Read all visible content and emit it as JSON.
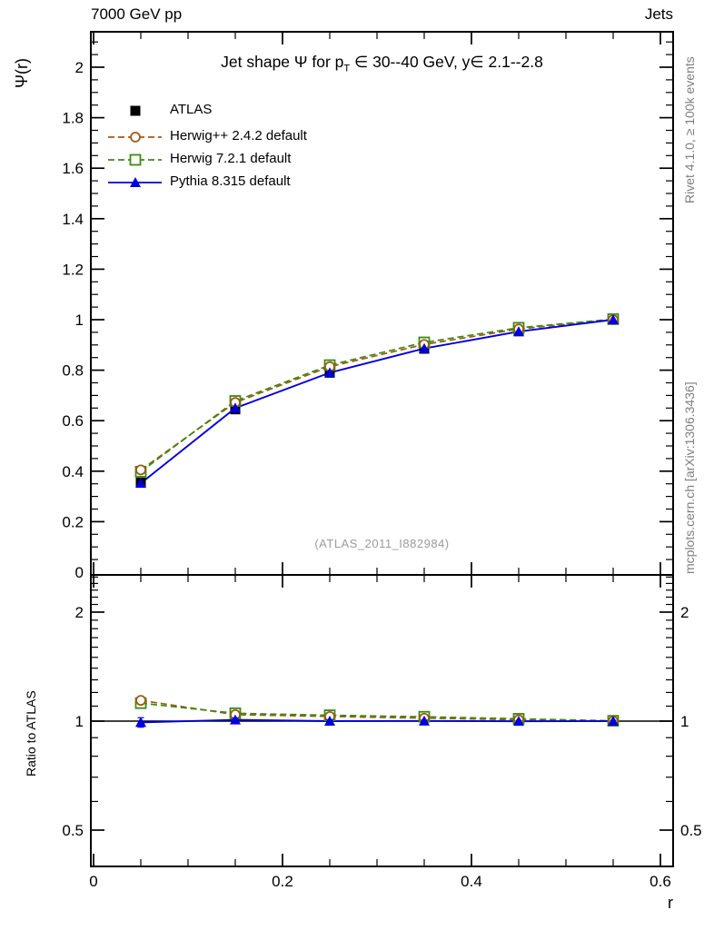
{
  "header": {
    "left_label": "7000 GeV pp",
    "right_label": "Jets"
  },
  "title": {
    "pre": "Jet shape Ψ for p",
    "sub": "T",
    "post": " ∈ 30--40 GeV, y∈ 2.1--2.8"
  },
  "watermark": "(ATLAS_2011_I882984)",
  "side_notes": {
    "top_rotated": "Rivet 4.1.0, ≥ 100k events",
    "bottom_rotated": "mcplots.cern.ch [arXiv:1306.3436]"
  },
  "axes": {
    "x_label": "r",
    "main_y_label": "Ψ(r)",
    "ratio_y_label": "Ratio to ATLAS",
    "x_ticks": [
      {
        "v": 0,
        "label": "0"
      },
      {
        "v": 0.2,
        "label": "0.2"
      },
      {
        "v": 0.4,
        "label": "0.4"
      },
      {
        "v": 0.6,
        "label": "0.6"
      }
    ],
    "main_y_ticks": [
      {
        "v": 0,
        "label": "0"
      },
      {
        "v": 0.2,
        "label": "0.2"
      },
      {
        "v": 0.4,
        "label": "0.4"
      },
      {
        "v": 0.6,
        "label": "0.6"
      },
      {
        "v": 0.8,
        "label": "0.8"
      },
      {
        "v": 1,
        "label": "1"
      },
      {
        "v": 1.2,
        "label": "1.2"
      },
      {
        "v": 1.4,
        "label": "1.4"
      },
      {
        "v": 1.6,
        "label": "1.6"
      },
      {
        "v": 1.8,
        "label": "1.8"
      },
      {
        "v": 2,
        "label": "2"
      }
    ],
    "ratio_y_ticks": [
      {
        "v": 0.5,
        "label": "0.5"
      },
      {
        "v": 1,
        "label": "1"
      },
      {
        "v": 2,
        "label": "2"
      }
    ]
  },
  "legend": {
    "items": [
      {
        "label": "ATLAS"
      },
      {
        "label": "Herwig++ 2.4.2 default"
      },
      {
        "label": "Herwig 7.2.1 default"
      },
      {
        "label": "Pythia 8.315 default"
      }
    ]
  },
  "colors": {
    "atlas": "#000000",
    "herwigpp": "#a05a12",
    "herwig7": "#3a8c12",
    "pythia": "#0000dd",
    "gray_text": "#7e7e7e"
  },
  "chart_data": [
    {
      "type": "line",
      "panel": "main",
      "title": "Jet shape Ψ for pT ∈ 30--40 GeV, y∈ 2.1--2.8",
      "xlabel": "r",
      "ylabel": "Ψ(r)",
      "xlim": [
        0,
        0.613
      ],
      "ylim": [
        0,
        2.14
      ],
      "x": [
        0.05,
        0.15,
        0.25,
        0.35,
        0.45,
        0.55
      ],
      "series": [
        {
          "name": "ATLAS",
          "color": "#000000",
          "marker": "filled-square",
          "line": "none",
          "values": [
            0.355,
            0.645,
            0.79,
            0.885,
            0.954,
            1.0
          ],
          "yerr": [
            0.008,
            0.006,
            0.005,
            0.004,
            0.003,
            0.002
          ]
        },
        {
          "name": "Herwig++ 2.4.2 default",
          "color": "#a05a12",
          "marker": "open-circle",
          "line": "dashed",
          "values": [
            0.405,
            0.672,
            0.814,
            0.902,
            0.963,
            1.0
          ]
        },
        {
          "name": "Herwig 7.2.1 default",
          "color": "#3a8c12",
          "marker": "open-square",
          "line": "dashed",
          "values": [
            0.398,
            0.678,
            0.82,
            0.91,
            0.968,
            1.002
          ]
        },
        {
          "name": "Pythia 8.315 default",
          "color": "#0000dd",
          "marker": "filled-triangle",
          "line": "solid",
          "values": [
            0.352,
            0.65,
            0.79,
            0.886,
            0.953,
            1.0
          ]
        }
      ],
      "grid": false,
      "legend_position": "upper-left"
    },
    {
      "type": "line",
      "panel": "ratio",
      "ylabel": "Ratio to ATLAS",
      "yscale": "log",
      "xlim": [
        0,
        0.613
      ],
      "ylim": [
        0.4,
        2.53
      ],
      "x": [
        0.05,
        0.15,
        0.25,
        0.35,
        0.45,
        0.55
      ],
      "reference_line": 1,
      "series": [
        {
          "name": "Herwig++ 2.4.2 default",
          "color": "#a05a12",
          "marker": "open-circle",
          "line": "dashed",
          "values": [
            1.141,
            1.042,
            1.03,
            1.019,
            1.009,
            1.0
          ]
        },
        {
          "name": "Herwig 7.2.1 default",
          "color": "#3a8c12",
          "marker": "open-square",
          "line": "dashed",
          "values": [
            1.121,
            1.051,
            1.038,
            1.028,
            1.015,
            1.002
          ]
        },
        {
          "name": "Pythia 8.315 default",
          "color": "#0000dd",
          "marker": "filled-triangle",
          "line": "solid",
          "values": [
            0.992,
            1.008,
            1.0,
            1.001,
            0.999,
            1.0
          ],
          "yerr": [
            0.03,
            0.012,
            0.008,
            0.006,
            0.005,
            0.004
          ]
        }
      ]
    }
  ]
}
